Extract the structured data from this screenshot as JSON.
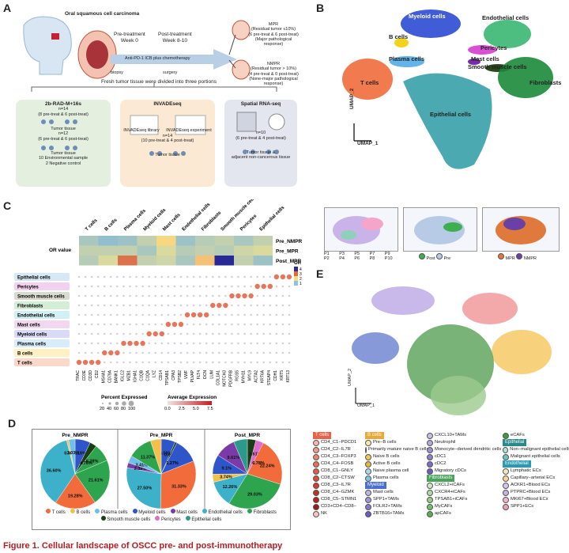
{
  "panels": {
    "a": "A",
    "b": "B",
    "c": "C",
    "d": "D",
    "e": "E"
  },
  "panelA": {
    "title": "Oral squamous cell carcinoma",
    "pre": "Pre-treatment",
    "pre_week": "Week 0",
    "post": "Post-treatment",
    "post_week": "Week 8-10",
    "therapy": "Anti-PD-1 ICB plus chemotherapy",
    "biopsy": "biopsy",
    "surgery": "surgery",
    "mpr": [
      "MPR",
      "(Residual tumor ≤10%)",
      "(6 pre-treat & 6 post-treat)",
      "(Major pathological response)"
    ],
    "nmpr": [
      "NMPR",
      "(Residual tumor > 10%)",
      "(4 pre-treat & 0 post-treat)",
      "(None-major pathological",
      "response)"
    ],
    "divided": "Fresh tumor tissue were divided into three portions",
    "box1": {
      "title": "2b-RAD-M+16s",
      "n1": "n=14",
      "s1": "(8 pre-treat & 6 post-treat)",
      "t1": "Tumor tissue",
      "n2": "n=12",
      "s2": "(6 pre-treat & 6 post-treat)",
      "t2": "Tumor tissue",
      "e1": "10 Environmental sample",
      "e2": "2 Negative control"
    },
    "box2": {
      "title": "INVADEseq",
      "lib": "INVADEseq library",
      "exp": "INVADEseq experiment",
      "n": "n=14",
      "s": "(10 pre-treat & 4 post-treat)",
      "t": "Tumor tissue"
    },
    "box3": {
      "title": "Spatial RNA-seq",
      "n": "n=10",
      "s": "(6 pre-treat & 4 post-treat)",
      "t1": "Tumor tissue &",
      "t2": "adjacent non-cancerous tissue"
    }
  },
  "panelB": {
    "clusters": [
      {
        "name": "Myeloid cells",
        "color": "#1f3fd0"
      },
      {
        "name": "Endothelial cells",
        "color": "#2fb36a"
      },
      {
        "name": "B cells",
        "color": "#f3d21b"
      },
      {
        "name": "Pericytes",
        "color": "#d94fd6"
      },
      {
        "name": "Plasma cells",
        "color": "#63b4e8"
      },
      {
        "name": "Mast cells",
        "color": "#7a2aa8"
      },
      {
        "name": "Smooth muscle cells",
        "color": "#2a4a1a"
      },
      {
        "name": "T cells",
        "color": "#ef6b3c"
      },
      {
        "name": "Fibroblasts",
        "color": "#1b8a3a"
      },
      {
        "name": "Epithelial cells",
        "color": "#2a9aa3"
      }
    ],
    "umap1": "UMAP_1",
    "umap2": "UMAP_2",
    "patients": [
      "P1",
      "P2",
      "P3",
      "P4",
      "P5",
      "P6",
      "P7",
      "P8",
      "P9",
      "P10"
    ],
    "prepost": [
      "Post",
      "Pre"
    ],
    "mprlegend": [
      "MPR",
      "NMPR"
    ]
  },
  "panelC": {
    "columns": [
      "T cells",
      "B cells",
      "Plasma cells",
      "Myeloid cells",
      "Mast cells",
      "Endothelial cells",
      "Fibroblasts",
      "Smooth muscle cells",
      "Pericytes",
      "Epithelial cells"
    ],
    "or_rows": [
      "Pre_NMPR",
      "Pre_MPR",
      "Post_MPR"
    ],
    "or_label": "OR value",
    "or_legend": {
      "title": "OR",
      "ticks": [
        "4",
        "3",
        "2",
        "1"
      ]
    },
    "or_values": [
      [
        1.4,
        1.2,
        1.3,
        1.6,
        2.2,
        1.3,
        1.5,
        1.6,
        1.4,
        1.6
      ],
      [
        1.6,
        1.6,
        1.6,
        1.4,
        1.8,
        1.5,
        1.6,
        1.5,
        1.7,
        1.8
      ],
      [
        1.5,
        1.8,
        3.2,
        1.6,
        1.7,
        1.4,
        2.4,
        4.2,
        1.6,
        1.3
      ]
    ],
    "dot_rows": [
      "Epithelial cells",
      "Pericytes",
      "Smooth muscle cells",
      "Fibroblasts",
      "Endothelial cells",
      "Mast cells",
      "Myeloid cells",
      "Plasma cells",
      "B cells",
      "T cells"
    ],
    "genes": [
      "TRAC",
      "CD3E",
      "CD3D",
      "CD2",
      "MS4A1",
      "CD79A",
      "BANK1",
      "IGLC2",
      "MZB1",
      "IGHA1",
      "C1QB",
      "C1QA",
      "LYZ",
      "CD14",
      "TPSAB1",
      "CPA3",
      "TPSB2",
      "VWF",
      "PLVAP",
      "FLT4",
      "DCN",
      "LUM",
      "COL1A1",
      "NOTCH3",
      "PDGFRB",
      "RGS5",
      "MYH11",
      "MYL9",
      "ACTA2",
      "KRT6A",
      "STEAP4",
      "CDH1",
      "KRT5",
      "KRT13"
    ],
    "pct_title": "Percent Expressed",
    "pct_ticks": [
      "20",
      "40",
      "60",
      "80",
      "100"
    ],
    "avg_title": "Average Expression",
    "avg_ticks": [
      "0.0",
      "2.5",
      "5.0",
      "7.5"
    ]
  },
  "panelD": {
    "titles": [
      "Pre_NMPR",
      "Pre_MPR",
      "Post_MPR"
    ],
    "legend": [
      {
        "name": "T cells",
        "color": "#f26b3a"
      },
      {
        "name": "B cells",
        "color": "#f3c14b"
      },
      {
        "name": "Plasma cells",
        "color": "#6ec0e8"
      },
      {
        "name": "Myeloid cells",
        "color": "#2e55c9"
      },
      {
        "name": "Mast cells",
        "color": "#7a3aa8"
      },
      {
        "name": "Endothelial cells",
        "color": "#3db1c9"
      },
      {
        "name": "Fibroblasts",
        "color": "#2ea44f"
      },
      {
        "name": "Smooth muscle cells",
        "color": "#1b3d14"
      },
      {
        "name": "Pericytes",
        "color": "#e06bd0"
      },
      {
        "name": "Epithelial cells",
        "color": "#2a9a8a"
      }
    ],
    "pies": [
      {
        "slices": [
          {
            "label": "7.18%",
            "value": 7.18,
            "color": "#2e55c9"
          },
          {
            "label": "",
            "value": 3.2,
            "color": "#1b3d14"
          },
          {
            "label": "8.28%",
            "value": 8.28,
            "color": "#2ea44f"
          },
          {
            "label": "21.61%",
            "value": 21.61,
            "color": "#2ea44f"
          },
          {
            "label": "19.28%",
            "value": 19.28,
            "color": "#f26b3a"
          },
          {
            "label": "36.60%",
            "value": 36.6,
            "color": "#3db1c9"
          },
          {
            "label": "0.93%",
            "value": 0.93,
            "color": "#f3c14b"
          },
          {
            "label": "3.03%",
            "value": 3.03,
            "color": "#6ec0e8"
          }
        ],
        "inner": [
          "4.76%"
        ]
      },
      {
        "slices": [
          {
            "label": "6.58%",
            "value": 6.58,
            "color": "#2e55c9"
          },
          {
            "label": "0.89%",
            "value": 0.89,
            "color": "#1b3d14"
          },
          {
            "label": "",
            "value": 11.5,
            "color": "#2e55c9"
          },
          {
            "label": "31.33%",
            "value": 31.33,
            "color": "#f26b3a"
          },
          {
            "label": "27.50%",
            "value": 27.5,
            "color": "#3db1c9"
          },
          {
            "label": "2.39%",
            "value": 2.39,
            "color": "#7a3aa8"
          },
          {
            "label": "3.41%",
            "value": 3.41,
            "color": "#6ec0e8"
          },
          {
            "label": "11.37%",
            "value": 11.37,
            "color": "#2ea44f"
          },
          {
            "label": "",
            "value": 5.0,
            "color": "#f3c14b"
          }
        ],
        "inner": [
          "1.27%"
        ]
      },
      {
        "slices": [
          {
            "label": "",
            "value": 4.0,
            "color": "#1b3d14"
          },
          {
            "label": "3.61%",
            "value": 3.61,
            "color": "#e06bd0"
          },
          {
            "label": "22.24%",
            "value": 22.24,
            "color": "#f26b3a"
          },
          {
            "label": "29.03%",
            "value": 29.03,
            "color": "#2ea44f"
          },
          {
            "label": "12.26%",
            "value": 12.26,
            "color": "#3db1c9"
          },
          {
            "label": "3.74%",
            "value": 3.74,
            "color": "#f3c14b"
          },
          {
            "label": "9.1%",
            "value": 9.1,
            "color": "#2e55c9"
          },
          {
            "label": "9.61%",
            "value": 9.61,
            "color": "#7a3aa8"
          },
          {
            "label": "",
            "value": 6.4,
            "color": "#2a9a8a"
          }
        ],
        "inner": [
          "6.78%"
        ]
      }
    ]
  },
  "panelE": {
    "umap1": "UMAP_1",
    "umap2": "UMAP_2",
    "col1": [
      {
        "hdr": "T cells",
        "hdrcolor": "#e8624a"
      },
      {
        "name": "CD4_C1−PDCD1",
        "color": "#f7b6a5"
      },
      {
        "name": "CD4_C2−IL7R",
        "color": "#f39a86"
      },
      {
        "name": "CD4_C3−FOXP3",
        "color": "#f0826d"
      },
      {
        "name": "CD4_C4−FOSB",
        "color": "#e96e58"
      },
      {
        "name": "CD8_C1−GNLY",
        "color": "#e35a46"
      },
      {
        "name": "CD8_C2−CTSW",
        "color": "#dc4a38"
      },
      {
        "name": "CD8_C3−IL7R",
        "color": "#d33b2c"
      },
      {
        "name": "CD8_C4−GZMK",
        "color": "#c62e22"
      },
      {
        "name": "CD8_C5−STMN1",
        "color": "#b2241b"
      },
      {
        "name": "CD3+CD4−CD8−",
        "color": "#9a1a14"
      },
      {
        "name": "NK",
        "color": "#f4c6bb"
      }
    ],
    "col2": [
      {
        "hdr": "B cells",
        "hdrcolor": "#e9a93a"
      },
      {
        "name": "Pre−B cells",
        "color": "#fce7a9"
      },
      {
        "name": "Primarily mature naive B cells",
        "color": "#f8d77a"
      },
      {
        "name": "Naive B cells",
        "color": "#f3c756"
      },
      {
        "name": "Active B cells",
        "color": "#eab73c"
      },
      {
        "name": "Naive plasma cell",
        "color": "#a8d8ef"
      },
      {
        "name": "Plasma cells",
        "color": "#7ec2e6"
      },
      {
        "hdr": "Myeloid",
        "hdrcolor": "#4a6fd0"
      },
      {
        "name": "Mast cells",
        "color": "#bfb2e6"
      },
      {
        "name": "SPP1+TAMs",
        "color": "#a295dc"
      },
      {
        "name": "FOLR2+TAMs",
        "color": "#8578d0"
      },
      {
        "name": "ZBTB16+TAMs",
        "color": "#6a5cc4"
      }
    ],
    "col3": [
      {
        "name": "CXCL10+TAMs",
        "color": "#c9bde8"
      },
      {
        "name": "Neutrophil",
        "color": "#b3a6df"
      },
      {
        "name": "Monocyte−derived dendritic cells",
        "color": "#9c8fd6"
      },
      {
        "name": "cDC1",
        "color": "#8a7ece"
      },
      {
        "name": "cDC2",
        "color": "#7a6ec6"
      },
      {
        "name": "Migratory cDCs",
        "color": "#6a5fbf"
      },
      {
        "hdr": "Fibroblasts",
        "hdrcolor": "#4aa35a"
      },
      {
        "name": "CXCL2+iCAFs",
        "color": "#cde9c4"
      },
      {
        "name": "CXCR4+iCAFs",
        "color": "#b0dca4"
      },
      {
        "name": "TPSAB1+iCAFs",
        "color": "#93cf86"
      },
      {
        "name": "MyCAFs",
        "color": "#75c069"
      },
      {
        "name": "apCAFs",
        "color": "#58b04f"
      }
    ],
    "col4": [
      {
        "name": "eCAFs",
        "color": "#3d9b3b"
      },
      {
        "hdr": "Epithelial",
        "hdrcolor": "#2a8a8a"
      },
      {
        "name": "Non−malignant epithelial cells",
        "color": "#b4e0dd"
      },
      {
        "name": "Malignant epithelial cells",
        "color": "#6fc2bd"
      },
      {
        "hdr": "Endothelial",
        "hdrcolor": "#2a9ab4"
      },
      {
        "name": "Lymphatic ECs",
        "color": "#fde4b8"
      },
      {
        "name": "Capillary−arterial ECs",
        "color": "#fbd29a"
      },
      {
        "name": "ACKR1+Blood ECs",
        "color": "#d9c3ec"
      },
      {
        "name": "PTPRC+Blood ECs",
        "color": "#c7b0e6"
      },
      {
        "name": "MKI67+Blood ECs",
        "color": "#f4b3c8"
      },
      {
        "name": "SPP1+ECs",
        "color": "#e9a0b8"
      }
    ]
  },
  "caption": "Figure 1.  Cellular landscape of OSCC pre- and post-immunotherapy"
}
